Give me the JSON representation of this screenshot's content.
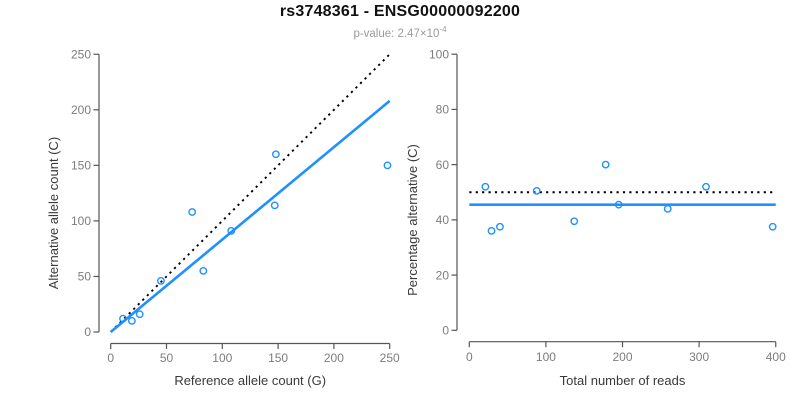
{
  "header": {
    "title": "rs3748361 - ENSG00000092200",
    "subtitle_prefix": "p-value: 2.47×10",
    "subtitle_exponent": "-4"
  },
  "colors": {
    "accent_blue": "#1E90FF",
    "dotted_line": "#000000",
    "axis": "#555555",
    "tick_label": "#7d7d7d",
    "axis_title": "#3a3a3a",
    "title_text": "#111111",
    "subtitle_text": "#9b9b9b",
    "background": "#ffffff"
  },
  "chart_data": [
    {
      "type": "scatter",
      "panel": "left",
      "xlabel": "Reference allele count (G)",
      "ylabel": "Alternative allele count (C)",
      "xlim": [
        0,
        250
      ],
      "ylim": [
        0,
        250
      ],
      "xticks": [
        0,
        50,
        100,
        150,
        200,
        250
      ],
      "yticks": [
        0,
        50,
        100,
        150,
        200,
        250
      ],
      "grid": false,
      "legend": null,
      "marker": "open-circle",
      "points": [
        [
          11,
          12
        ],
        [
          19,
          10
        ],
        [
          26,
          16
        ],
        [
          45,
          46
        ],
        [
          73,
          108
        ],
        [
          83,
          55
        ],
        [
          108,
          91
        ],
        [
          147,
          114
        ],
        [
          148,
          160
        ],
        [
          248,
          150
        ]
      ],
      "lines": [
        {
          "name": "identity-line-dotted",
          "style": "dotted",
          "color": "#000000",
          "x1": 0,
          "y1": 0,
          "x2": 250,
          "y2": 250
        },
        {
          "name": "regression-line",
          "style": "solid",
          "color": "#1E90FF",
          "x1": 0,
          "y1": 0,
          "x2": 250,
          "y2": 208
        }
      ]
    },
    {
      "type": "scatter",
      "panel": "right",
      "xlabel": "Total number of reads",
      "ylabel": "Percentage alternative (C)",
      "xlim": [
        0,
        400
      ],
      "ylim": [
        0,
        100
      ],
      "xticks": [
        0,
        100,
        200,
        300,
        400
      ],
      "yticks": [
        0,
        20,
        40,
        60,
        80,
        100
      ],
      "grid": false,
      "legend": null,
      "marker": "open-circle",
      "points": [
        [
          21,
          52
        ],
        [
          29,
          36
        ],
        [
          40,
          37.5
        ],
        [
          88,
          50.5
        ],
        [
          137,
          39.5
        ],
        [
          178,
          60
        ],
        [
          195,
          45.5
        ],
        [
          259,
          44
        ],
        [
          309,
          52
        ],
        [
          396,
          37.5
        ]
      ],
      "lines": [
        {
          "name": "fifty-percent-line-dotted",
          "style": "dotted",
          "color": "#000000",
          "x1": 0,
          "y1": 50,
          "x2": 400,
          "y2": 50
        },
        {
          "name": "mean-percentage-line",
          "style": "solid",
          "color": "#1E90FF",
          "x1": 0,
          "y1": 45.5,
          "x2": 400,
          "y2": 45.5
        }
      ]
    }
  ]
}
